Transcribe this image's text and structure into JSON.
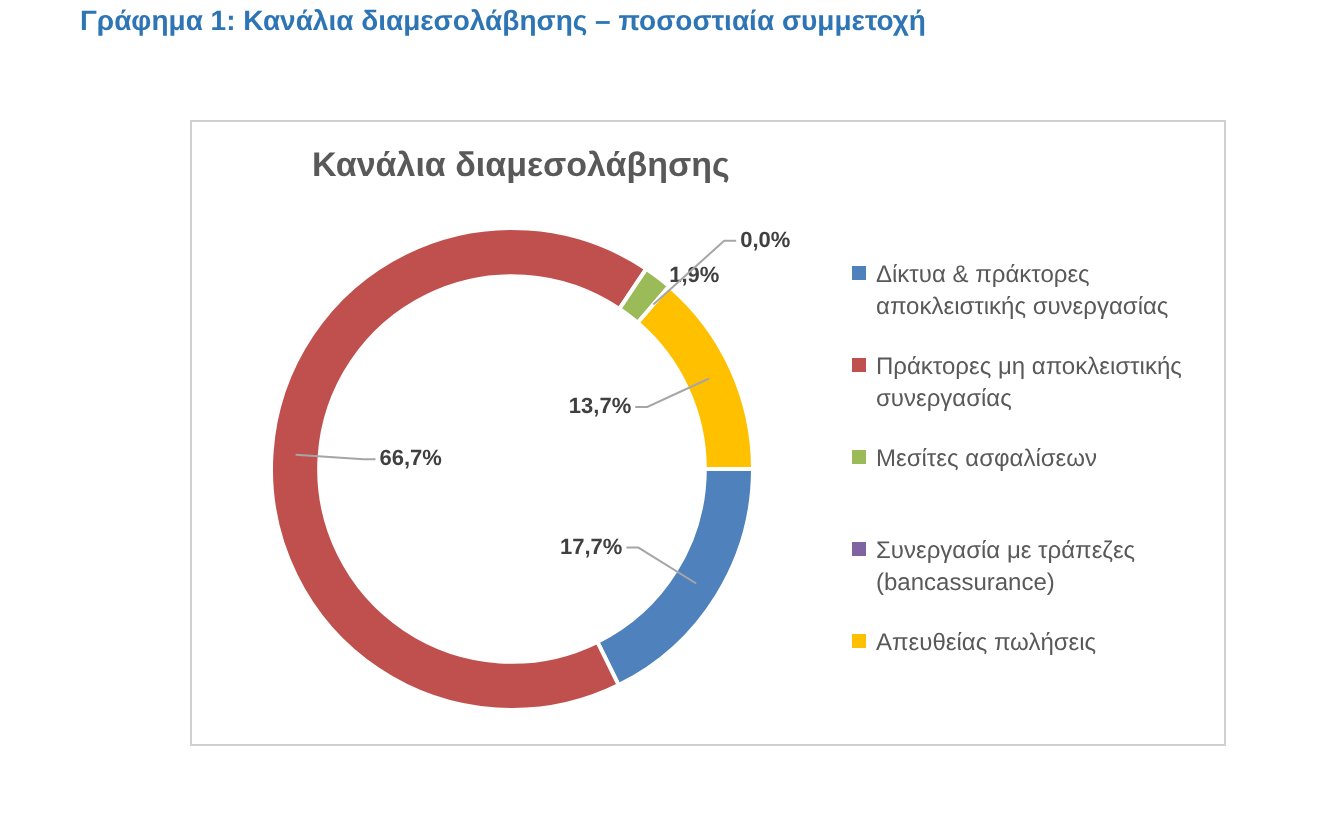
{
  "chart_data": {
    "type": "donut",
    "title": "Γράφημα 1: Κανάλια διαμεσολάβησης – ποσοστιαία συμμετοχή",
    "subtitle": "Κανάλια διαμεσολάβησης",
    "categories": [
      "Δίκτυα & πράκτορες αποκλειστικής συνεργασίας",
      "Πράκτορες μη αποκλειστικής συνεργασίας",
      "Μεσίτες ασφαλίσεων",
      "Συνεργασία με τράπεζες (bancassurance)",
      "Απευθείας πωλήσεις"
    ],
    "values": [
      17.7,
      66.7,
      1.9,
      0.0,
      13.7
    ],
    "colors": [
      "#4f81bd",
      "#c0504d",
      "#9bbb59",
      "#8064a2",
      "#ffc000"
    ],
    "value_labels": [
      "17,7%",
      "66,7%",
      "1,9%",
      "0,0%",
      "13,7%"
    ],
    "legend": "right"
  }
}
